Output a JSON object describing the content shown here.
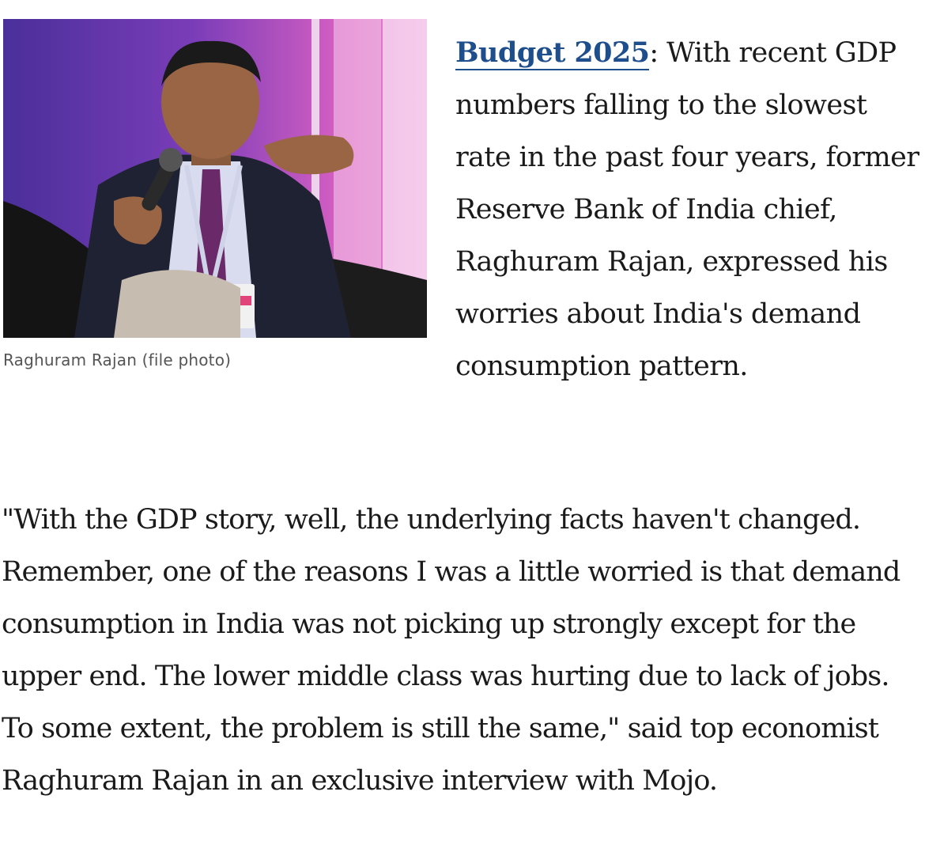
{
  "figure": {
    "caption": "Raghuram Rajan (file photo)"
  },
  "lead": {
    "link_text": "Budget 2025",
    "text": ": With recent GDP numbers falling to the slowest rate in the past four years, former Reserve Bank of India chief, Raghuram Rajan, expressed his worries about India's demand consumption pattern."
  },
  "body": {
    "paragraph": "\"With the GDP story, well, the underlying facts haven't changed. Remember, one of the reasons I was a little worried is that demand consumption in India was not picking up strongly except for the upper end. The lower middle class was hurting due to lack of jobs. To some extent, the problem is still the same,\" said top economist Raghuram Rajan in an exclusive interview with Mojo."
  }
}
